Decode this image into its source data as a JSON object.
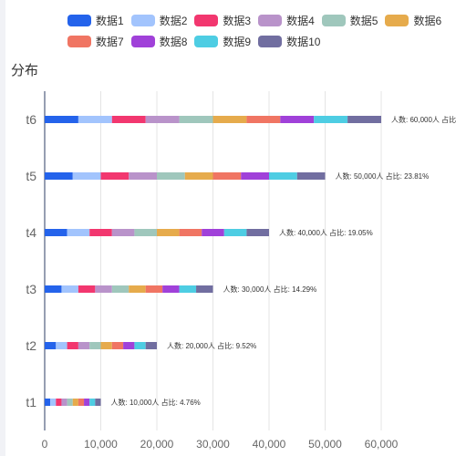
{
  "chart_data": {
    "type": "bar",
    "orientation": "horizontal",
    "stacked": true,
    "title": "分布",
    "xlabel": "",
    "ylabel": "",
    "xlim": [
      0,
      60000
    ],
    "x_ticks": [
      0,
      10000,
      20000,
      30000,
      40000,
      50000,
      60000
    ],
    "x_tick_labels": [
      "0",
      "10,000",
      "20,000",
      "30,000",
      "40,000",
      "50,000",
      "60,000"
    ],
    "categories": [
      "t1",
      "t2",
      "t3",
      "t4",
      "t5",
      "t6"
    ],
    "series": [
      {
        "name": "数据1",
        "color": "#2463eb",
        "values": [
          1000,
          2000,
          3000,
          4000,
          5000,
          6000
        ]
      },
      {
        "name": "数据2",
        "color": "#a2c4fd",
        "values": [
          1000,
          2000,
          3000,
          4000,
          5000,
          6000
        ]
      },
      {
        "name": "数据3",
        "color": "#f2376f",
        "values": [
          1000,
          2000,
          3000,
          4000,
          5000,
          6000
        ]
      },
      {
        "name": "数据4",
        "color": "#b993ca",
        "values": [
          1000,
          2000,
          3000,
          4000,
          5000,
          6000
        ]
      },
      {
        "name": "数据5",
        "color": "#9fc7bc",
        "values": [
          1000,
          2000,
          3000,
          4000,
          5000,
          6000
        ]
      },
      {
        "name": "数据6",
        "color": "#e6ab4c",
        "values": [
          1000,
          2000,
          3000,
          4000,
          5000,
          6000
        ]
      },
      {
        "name": "数据7",
        "color": "#f07563",
        "values": [
          1000,
          2000,
          3000,
          4000,
          5000,
          6000
        ]
      },
      {
        "name": "数据8",
        "color": "#a041d9",
        "values": [
          1000,
          2000,
          3000,
          4000,
          5000,
          6000
        ]
      },
      {
        "name": "数据9",
        "color": "#4ecde3",
        "values": [
          1000,
          2000,
          3000,
          4000,
          5000,
          6000
        ]
      },
      {
        "name": "数据10",
        "color": "#716ea0",
        "values": [
          1000,
          2000,
          3000,
          4000,
          5000,
          6000
        ]
      }
    ],
    "data_labels": [
      "人数: 10,000人 占比: 4.76%",
      "人数: 20,000人 占比: 9.52%",
      "人数: 30,000人 占比: 14.29%",
      "人数: 40,000人 占比: 19.05%",
      "人数: 50,000人 占比: 23.81%",
      "人数: 60,000人 占比"
    ],
    "grid": true,
    "legend_position": "top"
  }
}
